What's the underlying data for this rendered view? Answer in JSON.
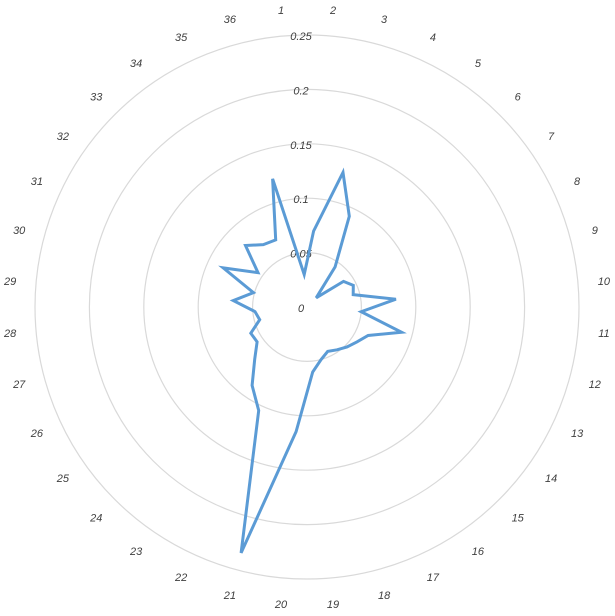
{
  "chart_data": {
    "type": "radar",
    "categories": [
      "1",
      "2",
      "3",
      "4",
      "5",
      "6",
      "7",
      "8",
      "9",
      "10",
      "11",
      "12",
      "13",
      "14",
      "15",
      "16",
      "17",
      "18",
      "19",
      "20",
      "21",
      "22",
      "23",
      "24",
      "25",
      "26",
      "27",
      "28",
      "29",
      "30",
      "31",
      "32",
      "33",
      "34",
      "35",
      "36"
    ],
    "radial_ticks": [
      "0",
      "0.05",
      "0.1",
      "0.15",
      "0.2",
      "0.25"
    ],
    "rlim": [
      0,
      0.25
    ],
    "grid": true,
    "legend": "none",
    "series": [
      {
        "color": "#5b9bd5",
        "values": [
          0.03,
          0.07,
          0.128,
          0.092,
          0.045,
          0.012,
          0.041,
          0.047,
          0.044,
          0.082,
          0.05,
          0.09,
          0.062,
          0.056,
          0.052,
          0.048,
          0.045,
          0.05,
          0.06,
          0.115,
          0.234,
          0.105,
          0.088,
          0.068,
          0.056,
          0.057,
          0.045,
          0.048,
          0.068,
          0.051,
          0.085,
          0.055,
          0.08,
          0.07,
          0.068,
          0.122
        ]
      }
    ]
  }
}
